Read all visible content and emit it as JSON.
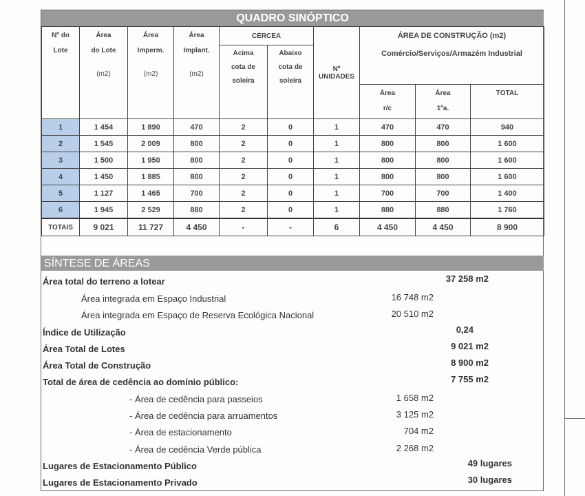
{
  "quadro": {
    "title": "QUADRO SINÓPTICO",
    "headers": {
      "lote": [
        "Nº do",
        "Lote"
      ],
      "area_lote": [
        "Área",
        "do Lote",
        "(m2)"
      ],
      "area_imperm": [
        "Área",
        "Imperm.",
        "(m2)"
      ],
      "area_implant": [
        "Área",
        "Implant.",
        "(m2)"
      ],
      "cercea": "CÉRCEA",
      "acima": [
        "Acima",
        "cota de",
        "soleira"
      ],
      "abaixo": [
        "Abaixo",
        "cota de",
        "soleira"
      ],
      "unidades": [
        "Nº",
        "UNIDADES"
      ],
      "area_construcao": "ÁREA DE CONSTRUÇÃO (m2)",
      "uso": "Comércio/Serviços/Armazém Industrial",
      "area_rc": [
        "Área",
        "r/c"
      ],
      "area_1a": [
        "Área",
        "1ºa."
      ],
      "total": "TOTAL"
    },
    "rows": [
      [
        "1",
        "1 454",
        "1 890",
        "470",
        "2",
        "0",
        "1",
        "470",
        "470",
        "940"
      ],
      [
        "2",
        "1 545",
        "2 009",
        "800",
        "2",
        "0",
        "1",
        "800",
        "800",
        "1 600"
      ],
      [
        "3",
        "1 500",
        "1 950",
        "800",
        "2",
        "0",
        "1",
        "800",
        "800",
        "1 600"
      ],
      [
        "4",
        "1 450",
        "1 885",
        "800",
        "2",
        "0",
        "1",
        "800",
        "800",
        "1 600"
      ],
      [
        "5",
        "1 127",
        "1 465",
        "700",
        "2",
        "0",
        "1",
        "700",
        "700",
        "1 400"
      ],
      [
        "6",
        "1 945",
        "2 529",
        "880",
        "2",
        "0",
        "1",
        "880",
        "880",
        "1 760"
      ]
    ],
    "totals": [
      "TOTAIS",
      "9 021",
      "11 727",
      "4 450",
      "-",
      "-",
      "6",
      "4 450",
      "4 450",
      "8 900"
    ],
    "lot_highlight_color": "#b9cfe9"
  },
  "sintese": {
    "title": "SÍNTESE DE ÁREAS",
    "rows": [
      {
        "label": "Área total do terreno a lotear",
        "value2": "37 258 m2",
        "bold": true
      },
      {
        "label": "Área integrada em Espaço Industrial",
        "value1": "16 748 m2"
      },
      {
        "label": "Área integrada em Espaço de Reserva Ecológica Nacional",
        "value1": "20 510 m2"
      },
      {
        "label": "Índice de Utilização",
        "value2": "0,24",
        "bold": true
      },
      {
        "label": "Área Total de Lotes",
        "value2": "9 021 m2",
        "bold": true
      },
      {
        "label": "Área Total de Construção",
        "value2": "8 900 m2",
        "bold": true
      },
      {
        "label": "Total de área de cedência ao domínio público:",
        "value2": "7 755 m2",
        "bold": true
      },
      {
        "label": "- Área de cedência para passeios",
        "value1": "1 658 m2"
      },
      {
        "label": "- Área de cedência para arruamentos",
        "value1": "3 125 m2"
      },
      {
        "label": "- Área de estacionamento",
        "value1": "704 m2"
      },
      {
        "label": "- Área de cedência Verde pública",
        "value1": "2 268 m2"
      },
      {
        "label": "Lugares de Estacionamento Público",
        "value2": "49 lugares",
        "bold": true
      },
      {
        "label": "Lugares de Estacionamento Privado",
        "value2": "30 lugares",
        "bold": true
      }
    ]
  }
}
